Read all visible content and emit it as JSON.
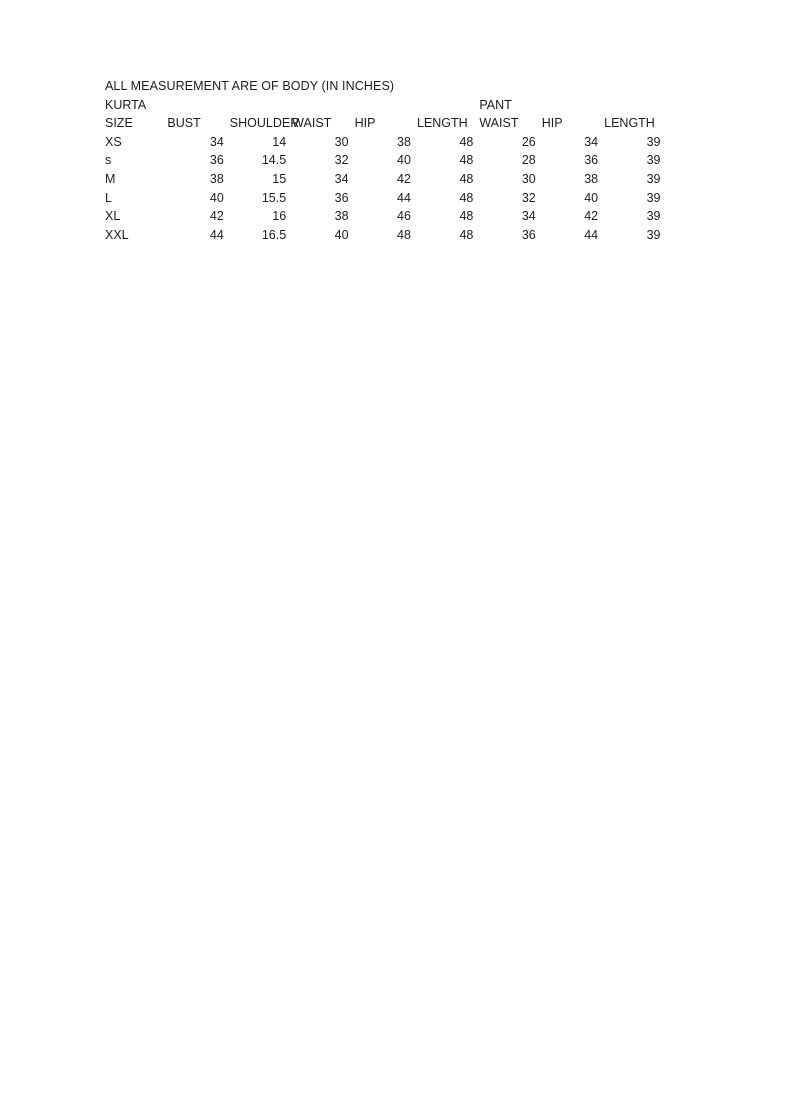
{
  "page": {
    "background_color": "#ffffff",
    "text_color": "#1d1d1d"
  },
  "document": {
    "title": "ALL MEASUREMENT ARE OF BODY (IN INCHES)",
    "group_labels": {
      "kurta": "KURTA",
      "pant": "PANT"
    },
    "columns": [
      "SIZE",
      "BUST",
      "SHOULDER",
      "WAIST",
      "HIP",
      "LENGTH",
      "WAIST",
      "HIP",
      "LENGTH"
    ],
    "rows": [
      {
        "size": "XS",
        "values": [
          "34",
          "14",
          "30",
          "38",
          "48",
          "26",
          "34",
          "39"
        ]
      },
      {
        "size": "s",
        "values": [
          "36",
          "14.5",
          "32",
          "40",
          "48",
          "28",
          "36",
          "39"
        ]
      },
      {
        "size": "M",
        "values": [
          "38",
          "15",
          "34",
          "42",
          "48",
          "30",
          "38",
          "39"
        ]
      },
      {
        "size": "L",
        "values": [
          "40",
          "15.5",
          "36",
          "44",
          "48",
          "32",
          "40",
          "39"
        ]
      },
      {
        "size": "XL",
        "values": [
          "42",
          "16",
          "38",
          "46",
          "48",
          "34",
          "42",
          "39"
        ]
      },
      {
        "size": "XXL",
        "values": [
          "44",
          "16.5",
          "40",
          "48",
          "48",
          "36",
          "44",
          "39"
        ]
      }
    ]
  },
  "chart_data": {
    "type": "table",
    "title": "ALL MEASUREMENT ARE OF BODY (IN INCHES)",
    "column_groups": [
      {
        "label": "KURTA",
        "columns": [
          "SIZE",
          "BUST",
          "SHOULDER",
          "WAIST",
          "HIP",
          "LENGTH"
        ]
      },
      {
        "label": "PANT",
        "columns": [
          "WAIST",
          "HIP",
          "LENGTH"
        ]
      }
    ],
    "headers": [
      "SIZE",
      "BUST",
      "SHOULDER",
      "WAIST",
      "HIP",
      "LENGTH",
      "WAIST",
      "HIP",
      "LENGTH"
    ],
    "rows": [
      [
        "XS",
        34,
        14,
        30,
        38,
        48,
        26,
        34,
        39
      ],
      [
        "s",
        36,
        14.5,
        32,
        40,
        48,
        28,
        36,
        39
      ],
      [
        "M",
        38,
        15,
        34,
        42,
        48,
        30,
        38,
        39
      ],
      [
        "L",
        40,
        15.5,
        36,
        44,
        48,
        32,
        40,
        39
      ],
      [
        "XL",
        42,
        16,
        38,
        46,
        48,
        34,
        42,
        39
      ],
      [
        "XXL",
        44,
        16.5,
        40,
        48,
        48,
        36,
        44,
        39
      ]
    ]
  }
}
